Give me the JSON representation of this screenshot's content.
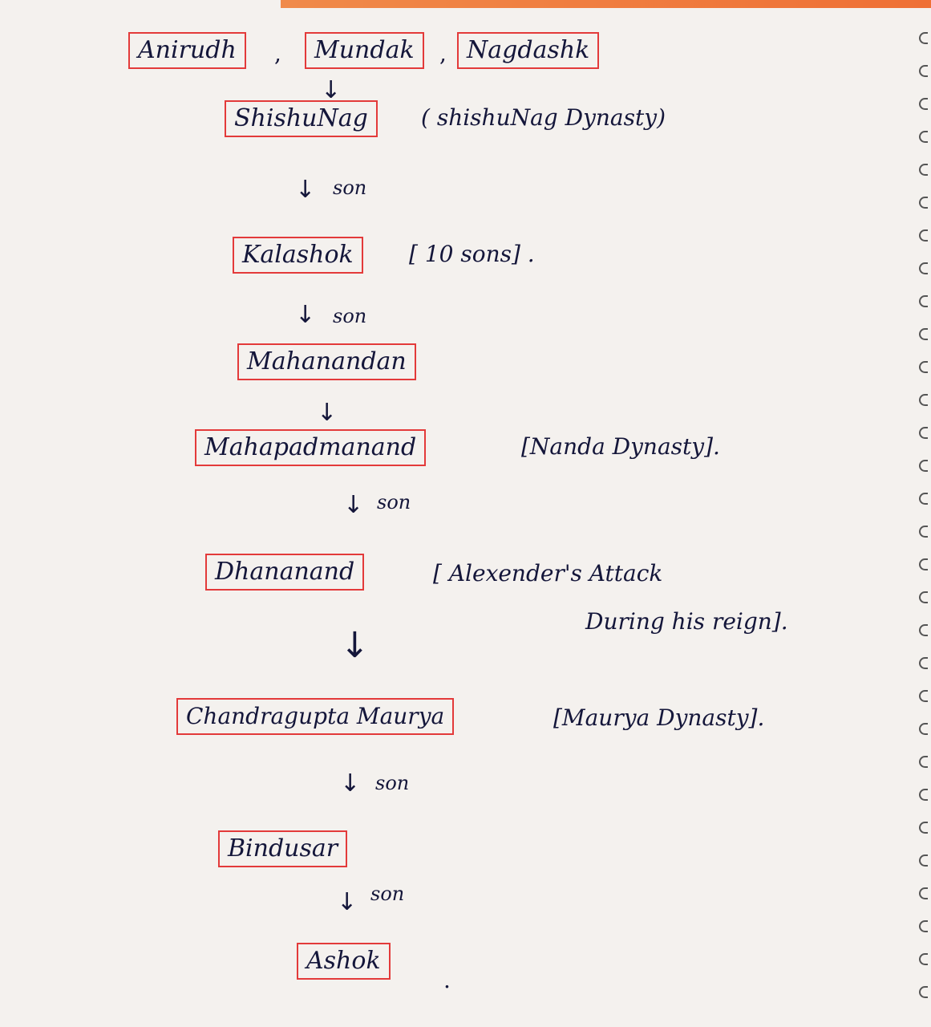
{
  "nodes": [
    {
      "name": "Anirudh"
    },
    {
      "name": "Mundak"
    },
    {
      "name": "Nagdashk"
    },
    {
      "name": "ShishuNag",
      "note": "( shishuNag Dynasty)"
    },
    {
      "name": "Kalashok",
      "note": "[ 10 sons] ."
    },
    {
      "name": "Mahanandan"
    },
    {
      "name": "Mahapadmanand",
      "note": "[Nanda Dynasty]."
    },
    {
      "name": "Dhananand",
      "note": "[ Alexender's Attack",
      "note2": "During his reign]."
    },
    {
      "name": "Chandragupta Maurya",
      "note": "[Maurya Dynasty]."
    },
    {
      "name": "Bindusar"
    },
    {
      "name": "Ashok"
    }
  ],
  "relation_label": "son",
  "arrow_glyph": "↓",
  "separator": ",",
  "ending_dot": ".",
  "colors": {
    "box_border": "#e33a3a",
    "ink": "#14163a",
    "paper": "#f4f1ee"
  }
}
